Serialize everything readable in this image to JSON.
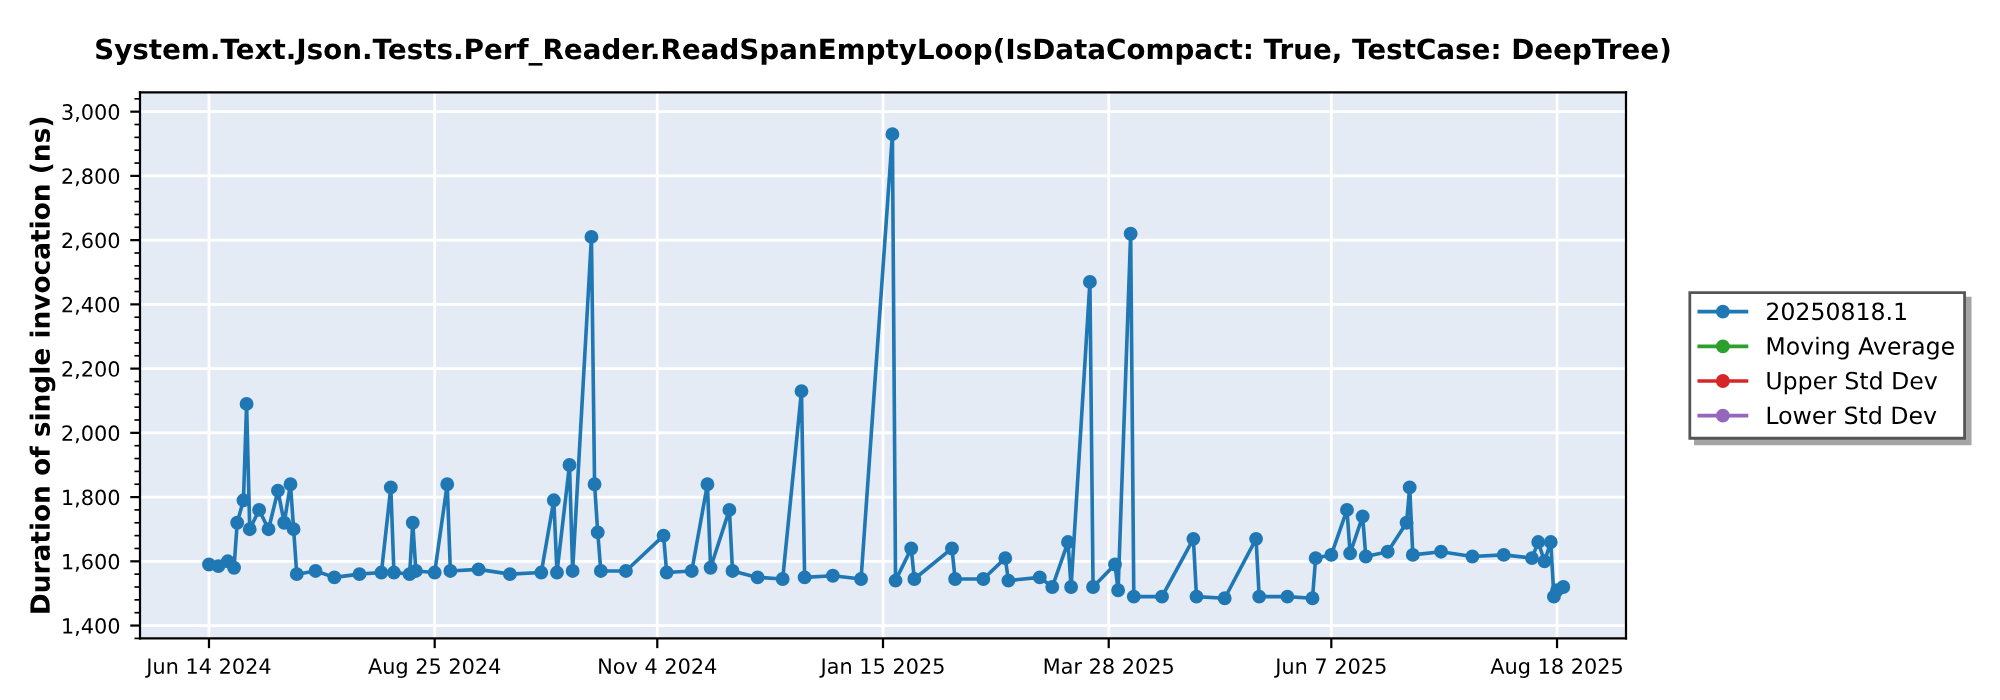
{
  "chart_data": {
    "type": "line",
    "title": "System.Text.Json.Tests.Perf_Reader.ReadSpanEmptyLoop(IsDataCompact: True, TestCase: DeepTree)",
    "ylabel": "Duration of single invocation (ns)",
    "x": [
      "2024-06-14",
      "2024-06-17",
      "2024-06-20",
      "2024-06-22",
      "2024-06-23",
      "2024-06-25",
      "2024-06-26",
      "2024-06-27",
      "2024-06-30",
      "2024-07-03",
      "2024-07-06",
      "2024-07-08",
      "2024-07-10",
      "2024-07-11",
      "2024-07-12",
      "2024-07-18",
      "2024-07-24",
      "2024-08-01",
      "2024-08-08",
      "2024-08-11",
      "2024-08-12",
      "2024-08-17",
      "2024-08-18",
      "2024-08-19",
      "2024-08-25",
      "2024-08-29",
      "2024-08-30",
      "2024-09-08",
      "2024-09-18",
      "2024-09-28",
      "2024-10-02",
      "2024-10-03",
      "2024-10-07",
      "2024-10-08",
      "2024-10-14",
      "2024-10-15",
      "2024-10-16",
      "2024-10-17",
      "2024-10-25",
      "2024-11-06",
      "2024-11-07",
      "2024-11-15",
      "2024-11-20",
      "2024-11-21",
      "2024-11-27",
      "2024-11-28",
      "2024-12-06",
      "2024-12-14",
      "2024-12-20",
      "2024-12-21",
      "2024-12-30",
      "2025-01-08",
      "2025-01-18",
      "2025-01-19",
      "2025-01-24",
      "2025-01-25",
      "2025-02-06",
      "2025-02-07",
      "2025-02-16",
      "2025-02-23",
      "2025-02-24",
      "2025-03-06",
      "2025-03-10",
      "2025-03-15",
      "2025-03-16",
      "2025-03-22",
      "2025-03-23",
      "2025-03-30",
      "2025-03-31",
      "2025-04-04",
      "2025-04-05",
      "2025-04-14",
      "2025-04-24",
      "2025-04-25",
      "2025-05-04",
      "2025-05-14",
      "2025-05-15",
      "2025-05-24",
      "2025-06-01",
      "2025-06-02",
      "2025-06-07",
      "2025-06-12",
      "2025-06-13",
      "2025-06-17",
      "2025-06-18",
      "2025-06-25",
      "2025-07-01",
      "2025-07-02",
      "2025-07-03",
      "2025-07-12",
      "2025-07-22",
      "2025-08-01",
      "2025-08-10",
      "2025-08-12",
      "2025-08-14",
      "2025-08-16",
      "2025-08-17",
      "2025-08-18",
      "2025-08-20"
    ],
    "series": [
      {
        "name": "20250818.1",
        "color": "#1f77b4",
        "values": [
          1590,
          1585,
          1600,
          1580,
          1720,
          1790,
          2090,
          1700,
          1760,
          1700,
          1820,
          1720,
          1840,
          1700,
          1560,
          1570,
          1550,
          1560,
          1565,
          1830,
          1565,
          1560,
          1720,
          1570,
          1565,
          1840,
          1570,
          1575,
          1560,
          1565,
          1790,
          1565,
          1900,
          1570,
          2610,
          1840,
          1690,
          1570,
          1570,
          1680,
          1565,
          1570,
          1840,
          1580,
          1760,
          1570,
          1550,
          1545,
          2130,
          1550,
          1555,
          1545,
          2930,
          1540,
          1640,
          1545,
          1640,
          1545,
          1545,
          1610,
          1540,
          1550,
          1520,
          1660,
          1520,
          2470,
          1520,
          1590,
          1510,
          2620,
          1490,
          1490,
          1670,
          1490,
          1485,
          1670,
          1490,
          1490,
          1485,
          1610,
          1620,
          1760,
          1625,
          1740,
          1615,
          1630,
          1720,
          1830,
          1620,
          1630,
          1615,
          1620,
          1610,
          1660,
          1600,
          1660,
          1490,
          1510,
          1520
        ]
      },
      {
        "name": "Moving Average",
        "color": "#2ca02c",
        "values": [
          null,
          null,
          null,
          null,
          null,
          null,
          null,
          null,
          null,
          null,
          null,
          null,
          null,
          null,
          null,
          null,
          null,
          null,
          null,
          null,
          null,
          null,
          null,
          null,
          null,
          null,
          null,
          null,
          null,
          null,
          null,
          null,
          null,
          null,
          null,
          null,
          null,
          null,
          null,
          null,
          null,
          null,
          null,
          null,
          null,
          null,
          null,
          null,
          null,
          null,
          null,
          null,
          null,
          null,
          null,
          null,
          null,
          null,
          null,
          null,
          null,
          null,
          null,
          null,
          null,
          null,
          null,
          null,
          null,
          null,
          null,
          null,
          null,
          null,
          null,
          null,
          null,
          null,
          null,
          null,
          null,
          null,
          null,
          null,
          null,
          null,
          null,
          null,
          null,
          null,
          null,
          null,
          null,
          null,
          null,
          null,
          null,
          null,
          null
        ]
      },
      {
        "name": "Upper Std Dev",
        "color": "#d62728",
        "values": [
          null,
          null,
          null,
          null,
          null,
          null,
          null,
          null,
          null,
          null,
          null,
          null,
          null,
          null,
          null,
          null,
          null,
          null,
          null,
          null,
          null,
          null,
          null,
          null,
          null,
          null,
          null,
          null,
          null,
          null,
          null,
          null,
          null,
          null,
          null,
          null,
          null,
          null,
          null,
          null,
          null,
          null,
          null,
          null,
          null,
          null,
          null,
          null,
          null,
          null,
          null,
          null,
          null,
          null,
          null,
          null,
          null,
          null,
          null,
          null,
          null,
          null,
          null,
          null,
          null,
          null,
          null,
          null,
          null,
          null,
          null,
          null,
          null,
          null,
          null,
          null,
          null,
          null,
          null,
          null,
          null,
          null,
          null,
          null,
          null,
          null,
          null,
          null,
          null,
          null,
          null,
          null,
          null,
          null,
          null,
          null,
          null,
          null,
          null
        ]
      },
      {
        "name": "Lower Std Dev",
        "color": "#9467bd",
        "values": [
          null,
          null,
          null,
          null,
          null,
          null,
          null,
          null,
          null,
          null,
          null,
          null,
          null,
          null,
          null,
          null,
          null,
          null,
          null,
          null,
          null,
          null,
          null,
          null,
          null,
          null,
          null,
          null,
          null,
          null,
          null,
          null,
          null,
          null,
          null,
          null,
          null,
          null,
          null,
          null,
          null,
          null,
          null,
          null,
          null,
          null,
          null,
          null,
          null,
          null,
          null,
          null,
          null,
          null,
          null,
          null,
          null,
          null,
          null,
          null,
          null,
          null,
          null,
          null,
          null,
          null,
          null,
          null,
          null,
          null,
          null,
          null,
          null,
          null,
          null,
          null,
          null,
          null,
          null,
          null,
          null,
          null,
          null,
          null,
          null,
          null,
          null,
          null,
          null,
          null,
          null,
          null,
          null,
          null,
          null,
          null,
          null,
          null,
          null
        ]
      }
    ],
    "xlim": [
      "2024-05-23",
      "2025-09-09"
    ],
    "xticks": [
      {
        "value": "2024-06-14",
        "label": "Jun 14 2024"
      },
      {
        "value": "2024-08-25",
        "label": "Aug 25 2024"
      },
      {
        "value": "2024-11-04",
        "label": "Nov 4 2024"
      },
      {
        "value": "2025-01-15",
        "label": "Jan 15 2025"
      },
      {
        "value": "2025-03-28",
        "label": "Mar 28 2025"
      },
      {
        "value": "2025-06-07",
        "label": "Jun 7 2025"
      },
      {
        "value": "2025-08-18",
        "label": "Aug 18 2025"
      }
    ],
    "ylim": [
      1360,
      3060
    ],
    "yticks": [
      {
        "value": 1400,
        "label": "1,400"
      },
      {
        "value": 1600,
        "label": "1,600"
      },
      {
        "value": 1800,
        "label": "1,800"
      },
      {
        "value": 2000,
        "label": "2,000"
      },
      {
        "value": 2200,
        "label": "2,200"
      },
      {
        "value": 2400,
        "label": "2,400"
      },
      {
        "value": 2600,
        "label": "2,600"
      },
      {
        "value": 2800,
        "label": "2,800"
      },
      {
        "value": 3000,
        "label": "3,000"
      }
    ],
    "grid": true,
    "legend": "right",
    "marker": "circle",
    "line_style": "solid"
  }
}
